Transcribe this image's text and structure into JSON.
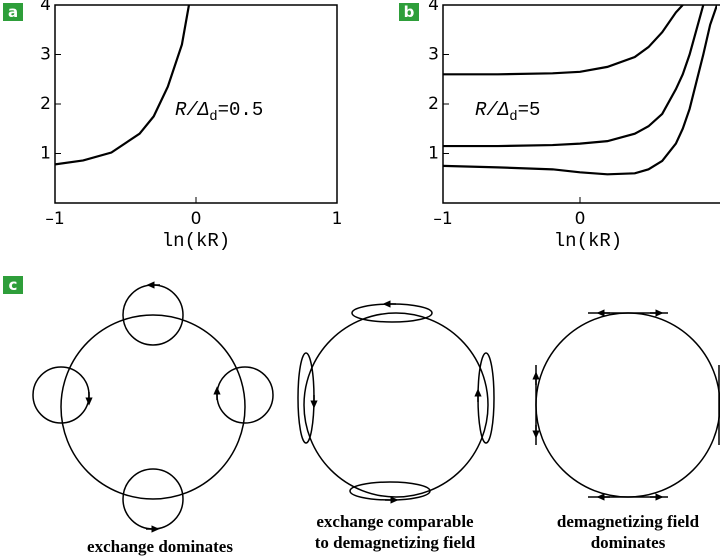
{
  "chart_data": [
    {
      "type": "line",
      "panel_label": "a",
      "x_label": "ln(kR)",
      "annotation": {
        "var": "R/Δ",
        "sub": "d",
        "rest": "=0.5"
      },
      "x": [
        -1,
        -0.8,
        -0.6,
        -0.4,
        -0.3,
        -0.2,
        -0.1,
        -0.05
      ],
      "series": [
        {
          "color": "#000000",
          "values": [
            0.78,
            0.86,
            1.02,
            1.4,
            1.75,
            2.35,
            3.2,
            4
          ]
        }
      ],
      "xlim": [
        -1,
        1
      ],
      "xticks": [
        {
          "value": -1,
          "label": "–1"
        },
        0,
        1
      ],
      "ylim": [
        0,
        4
      ],
      "yticks": [
        1,
        2,
        3,
        4
      ]
    },
    {
      "type": "line",
      "panel_label": "b",
      "x_label": "ln(kR)",
      "annotation": {
        "var": "R/Δ",
        "sub": "d",
        "rest": "=5"
      },
      "x": [
        -1,
        -0.6,
        -0.2,
        0,
        0.2,
        0.4,
        0.5,
        0.6,
        0.7,
        0.75,
        0.8,
        0.9,
        0.95,
        1
      ],
      "series": [
        {
          "color": "#000000",
          "values": [
            2.6,
            2.6,
            2.62,
            2.65,
            2.75,
            2.95,
            3.15,
            3.45,
            3.85,
            4,
            null,
            null,
            null,
            null
          ]
        },
        {
          "color": "#000000",
          "values": [
            1.15,
            1.15,
            1.17,
            1.2,
            1.25,
            1.4,
            1.55,
            1.8,
            2.3,
            2.6,
            3.0,
            4,
            null,
            null
          ]
        },
        {
          "color": "#000000",
          "values": [
            0.75,
            0.72,
            0.68,
            0.62,
            0.58,
            0.6,
            0.68,
            0.85,
            1.2,
            1.5,
            1.9,
            3.0,
            3.6,
            4
          ]
        }
      ],
      "xlim": [
        -1,
        1
      ],
      "xticks": [
        {
          "value": -1,
          "label": "–1"
        },
        0
      ],
      "ylim": [
        0,
        4
      ],
      "yticks": [
        1,
        2,
        3,
        4
      ]
    }
  ],
  "diagram": {
    "panel_label": "c",
    "captions": [
      [
        "exchange dominates"
      ],
      [
        "exchange comparable",
        "to demagnetizing field"
      ],
      [
        "demagnetizing field",
        "dominates"
      ]
    ]
  }
}
